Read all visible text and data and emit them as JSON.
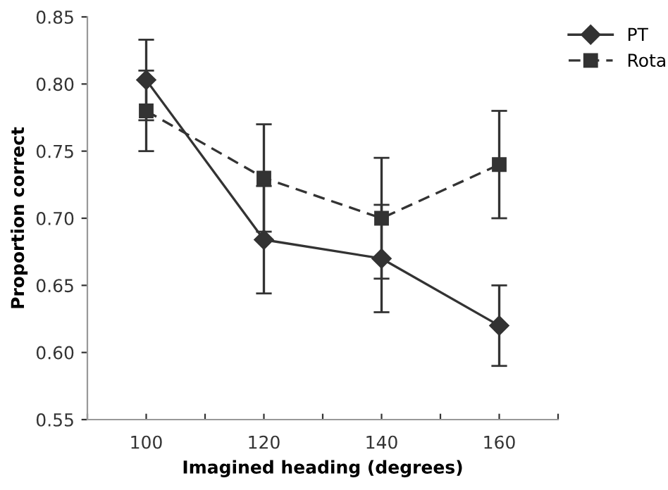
{
  "chart_data": {
    "type": "line",
    "xlabel": "Imagined heading (degrees)",
    "ylabel": "Proportion correct",
    "x": [
      100,
      120,
      140,
      160
    ],
    "series": [
      {
        "name": "PT",
        "color": "#333333",
        "values": [
          0.803,
          0.684,
          0.67,
          0.62
        ],
        "errors": [
          0.03,
          0.04,
          0.04,
          0.03
        ],
        "marker": "diamond",
        "line_style": "solid"
      },
      {
        "name": "Rota",
        "color": "#333333",
        "values": [
          0.78,
          0.73,
          0.7,
          0.74
        ],
        "errors": [
          0.03,
          0.04,
          0.045,
          0.04
        ],
        "marker": "square",
        "line_style": "dashed"
      }
    ],
    "xlim": [
      90,
      170
    ],
    "xticks": [
      {
        "value": 90,
        "label": null
      },
      100,
      {
        "value": 110,
        "label": null
      },
      120,
      {
        "value": 130,
        "label": null
      },
      140,
      {
        "value": 150,
        "label": null
      },
      160,
      {
        "value": 170,
        "label": null
      }
    ],
    "ylim": [
      0.55,
      0.85
    ],
    "yticks": [
      {
        "value": 0.55,
        "label": "0.55"
      },
      {
        "value": 0.6,
        "label": "0.60"
      },
      {
        "value": 0.65,
        "label": "0.65"
      },
      {
        "value": 0.7,
        "label": "0.70"
      },
      {
        "value": 0.75,
        "label": "0.75"
      },
      {
        "value": 0.8,
        "label": "0.80"
      },
      {
        "value": 0.85,
        "label": "0.85"
      }
    ],
    "grid": false,
    "legend": "top right"
  }
}
